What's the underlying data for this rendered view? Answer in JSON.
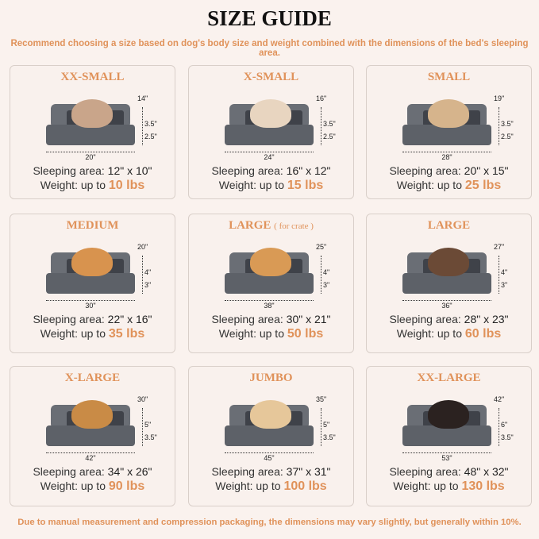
{
  "title": "SIZE GUIDE",
  "subtitle": "Recommend choosing a size based on dog's body size and weight combined with the dimensions of the bed's sleeping area.",
  "footer": "Due to manual measurement and compression packaging, the dimensions may vary slightly, but generally within 10%.",
  "sleeping_label": "Sleeping area:",
  "weight_label": "Weight:  up to",
  "accent_color": "#e0925a",
  "sizes": [
    {
      "name": "XX-SMALL",
      "note": "",
      "width": "20\"",
      "depth": "14\"",
      "h1": "3.5\"",
      "h2": "2.5\"",
      "sleep": "12\" x 10\"",
      "weight": "10 lbs",
      "pet": "cat"
    },
    {
      "name": "X-SMALL",
      "note": "",
      "width": "24\"",
      "depth": "16\"",
      "h1": "3.5\"",
      "h2": "2.5\"",
      "sleep": "16\" x 12\"",
      "weight": "15 lbs",
      "pet": "dog"
    },
    {
      "name": "SMALL",
      "note": "",
      "width": "28\"",
      "depth": "19\"",
      "h1": "3.5\"",
      "h2": "2.5\"",
      "sleep": "20\" x 15\"",
      "weight": "25 lbs",
      "pet": "dog"
    },
    {
      "name": "MEDIUM",
      "note": "",
      "width": "30\"",
      "depth": "20\"",
      "h1": "4\"",
      "h2": "3\"",
      "sleep": "22\" x 16\"",
      "weight": "35 lbs",
      "pet": "dog"
    },
    {
      "name": "LARGE",
      "note": "( for crate )",
      "width": "38\"",
      "depth": "25\"",
      "h1": "4\"",
      "h2": "3\"",
      "sleep": "30\" x 21\"",
      "weight": "50 lbs",
      "pet": "dog"
    },
    {
      "name": "LARGE",
      "note": "",
      "width": "36\"",
      "depth": "27\"",
      "h1": "4\"",
      "h2": "3\"",
      "sleep": "28\" x 23\"",
      "weight": "60 lbs",
      "pet": "dog"
    },
    {
      "name": "X-LARGE",
      "note": "",
      "width": "42\"",
      "depth": "30\"",
      "h1": "5\"",
      "h2": "3.5\"",
      "sleep": "34\" x 26\"",
      "weight": "90 lbs",
      "pet": "dog"
    },
    {
      "name": "JUMBO",
      "note": "",
      "width": "45\"",
      "depth": "35\"",
      "h1": "5\"",
      "h2": "3.5\"",
      "sleep": "37\" x 31\"",
      "weight": "100 lbs",
      "pet": "dog"
    },
    {
      "name": "XX-LARGE",
      "note": "",
      "width": "53\"",
      "depth": "42\"",
      "h1": "6\"",
      "h2": "3.5\"",
      "sleep": "48\" x 32\"",
      "weight": "130 lbs",
      "pet": "dog"
    }
  ]
}
